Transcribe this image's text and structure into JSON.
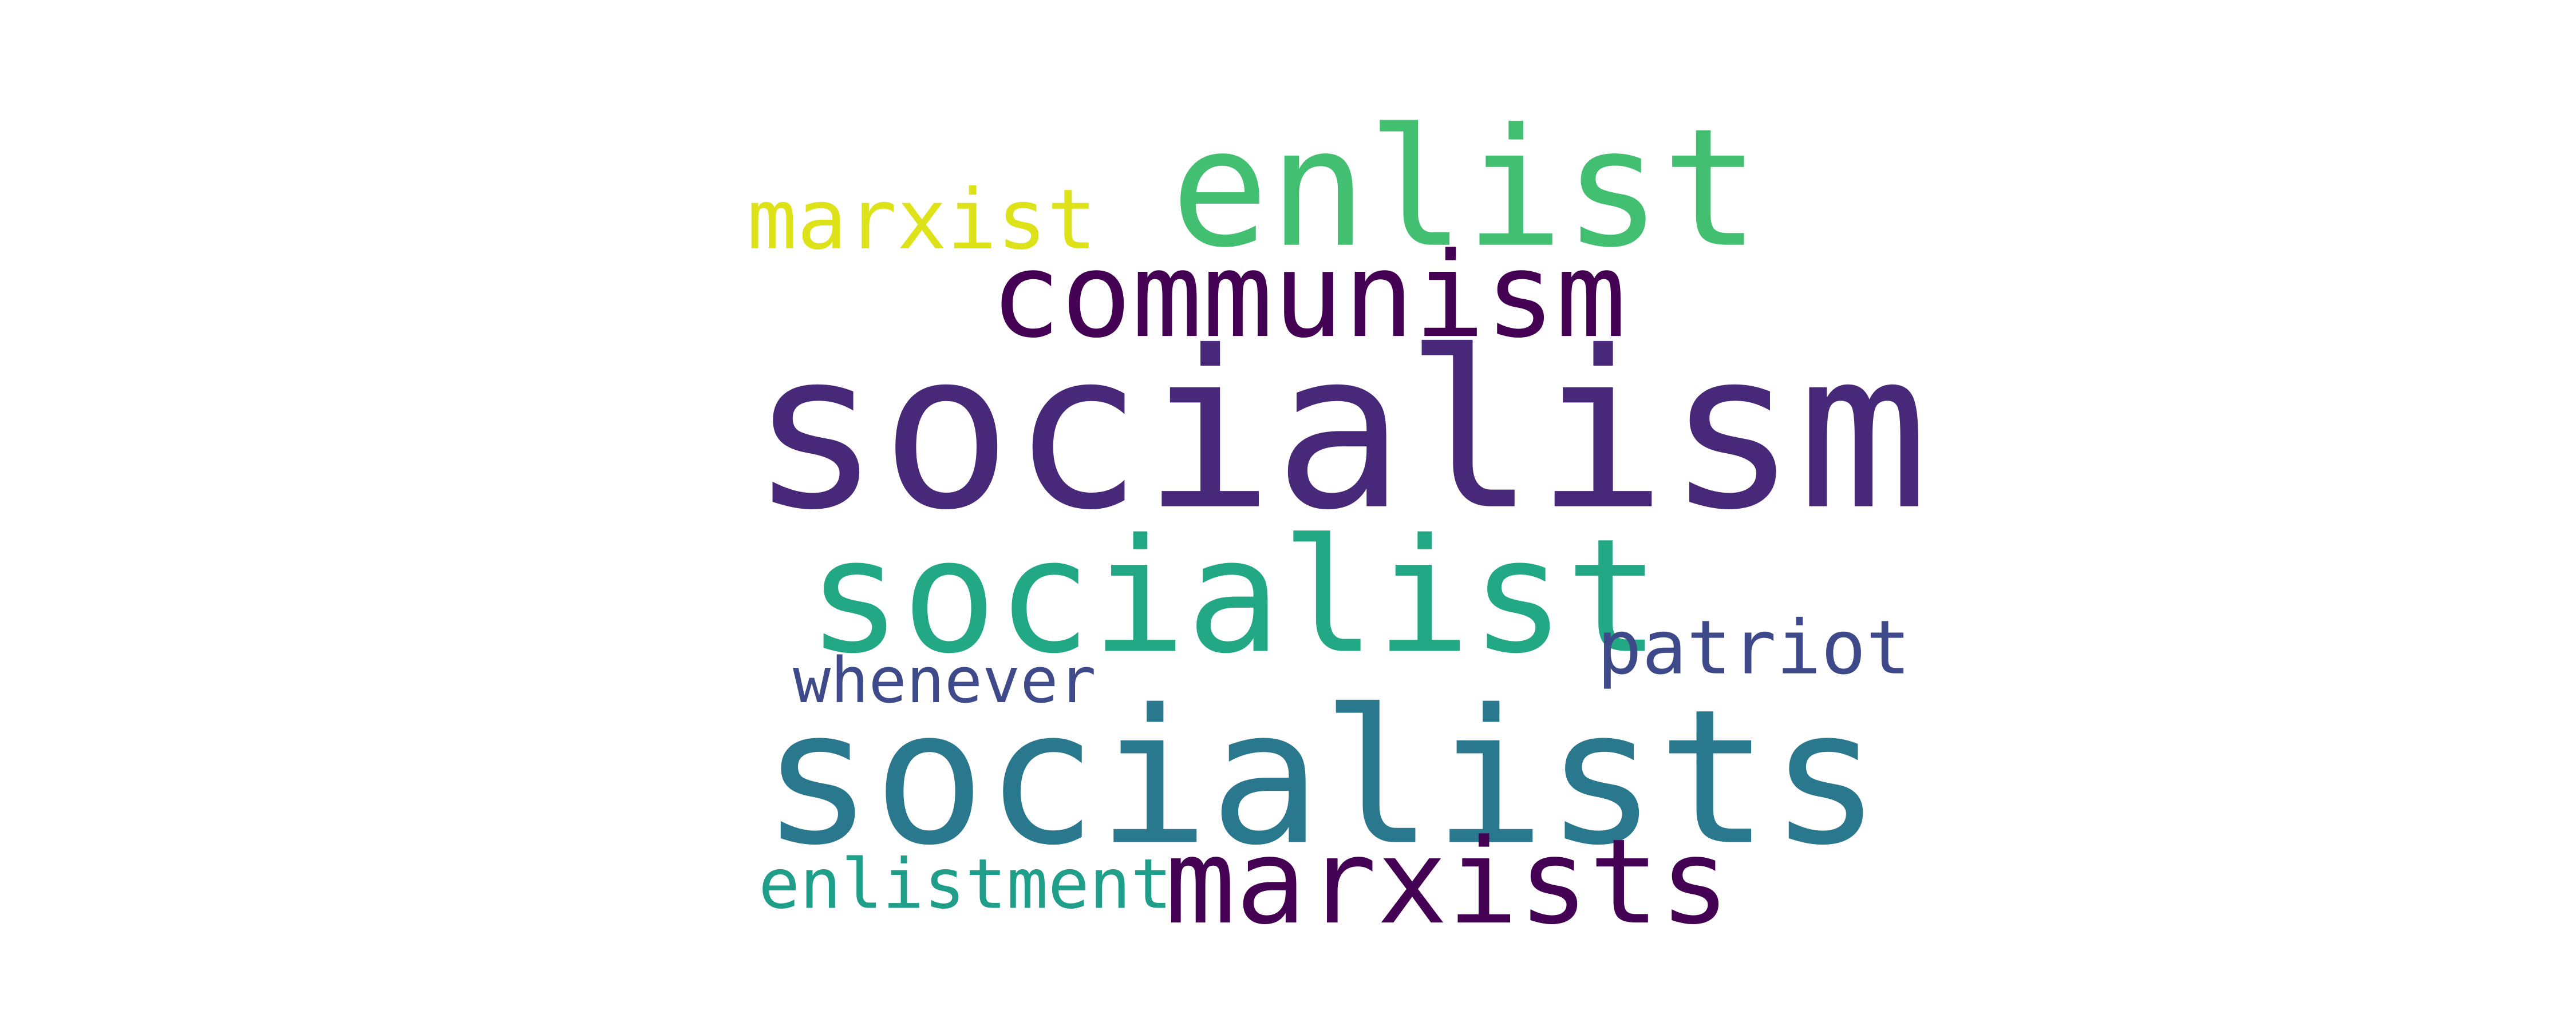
{
  "word_cloud": {
    "background_color": "#ffffff",
    "words": [
      {
        "id": "socialism",
        "text": "socialism",
        "color": "#482878"
      },
      {
        "id": "socialists",
        "text": "socialists",
        "color": "#2a788e"
      },
      {
        "id": "socialist",
        "text": "socialist",
        "color": "#22a884"
      },
      {
        "id": "enlist",
        "text": "enlist",
        "color": "#43bf71"
      },
      {
        "id": "communism",
        "text": "communism",
        "color": "#440154"
      },
      {
        "id": "marxists",
        "text": "marxists",
        "color": "#440154"
      },
      {
        "id": "marxist",
        "text": "marxist",
        "color": "#dde318"
      },
      {
        "id": "patriot",
        "text": "patriot",
        "color": "#3e4989"
      },
      {
        "id": "whenever",
        "text": "whenever",
        "color": "#3e4a89"
      },
      {
        "id": "enlistment",
        "text": "enlistment",
        "color": "#1f9e89"
      }
    ]
  }
}
